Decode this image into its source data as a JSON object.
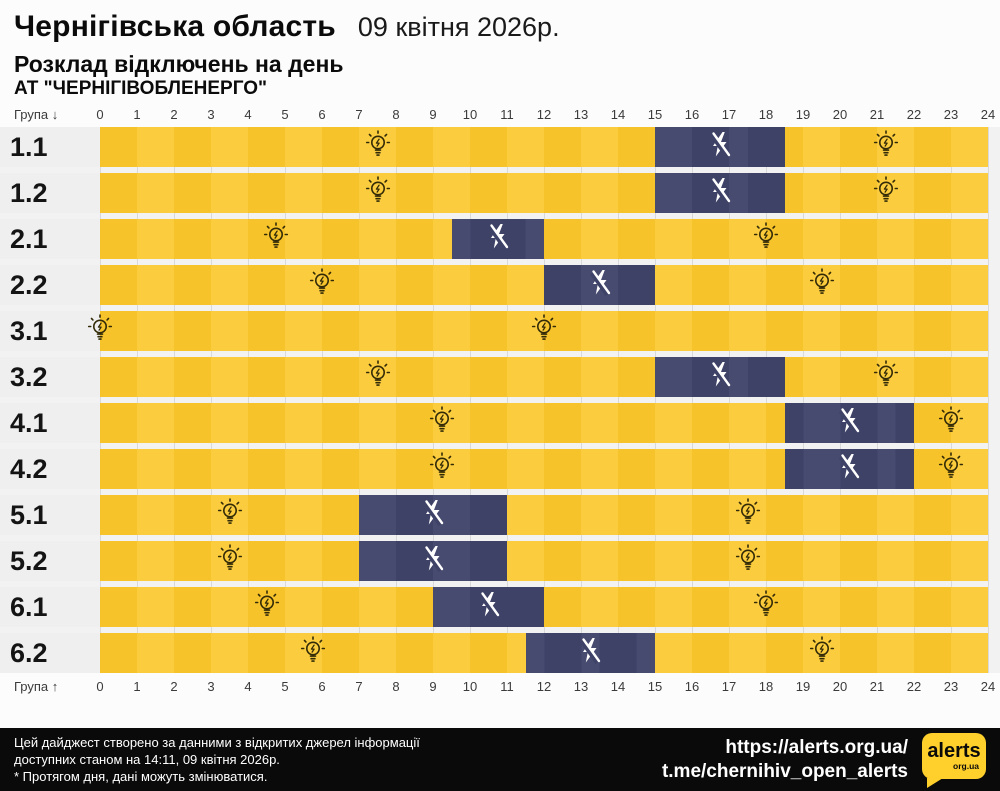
{
  "header": {
    "region": "Чернігівська область",
    "date": "09 квітня 2026р.",
    "subtitle": "Розклад відключень на день",
    "company": "АТ \"ЧЕРНІГІВОБЛЕНЕРГО\""
  },
  "axis": {
    "group_label_top": "Група ↓",
    "group_label_bottom": "Група ↑",
    "ticks": [
      "0",
      "1",
      "2",
      "3",
      "4",
      "5",
      "6",
      "7",
      "8",
      "9",
      "10",
      "11",
      "12",
      "13",
      "14",
      "15",
      "16",
      "17",
      "18",
      "19",
      "20",
      "21",
      "22",
      "23",
      "24"
    ]
  },
  "chart_data": {
    "type": "timeline",
    "title": "Розклад відключень на день",
    "x_unit": "hours",
    "x_range": [
      0,
      24
    ],
    "legend": {
      "power_on_marker": "lightbulb-icon (centered in each power-on interval)",
      "power_off_marker": "crossed-bolt-icon (centered in each outage interval)"
    },
    "rows": [
      {
        "group": "1.1",
        "outages": [
          {
            "start": 15,
            "end": 18.5
          }
        ],
        "bulbs": [
          7.5,
          21.25
        ]
      },
      {
        "group": "1.2",
        "outages": [
          {
            "start": 15,
            "end": 18.5
          }
        ],
        "bulbs": [
          7.5,
          21.25
        ]
      },
      {
        "group": "2.1",
        "outages": [
          {
            "start": 9.5,
            "end": 12
          }
        ],
        "bulbs": [
          4.75,
          18
        ]
      },
      {
        "group": "2.2",
        "outages": [
          {
            "start": 12,
            "end": 15
          }
        ],
        "bulbs": [
          6,
          19.5
        ]
      },
      {
        "group": "3.1",
        "outages": [],
        "bulbs": [
          0,
          12
        ]
      },
      {
        "group": "3.2",
        "outages": [
          {
            "start": 15,
            "end": 18.5
          }
        ],
        "bulbs": [
          7.5,
          21.25
        ]
      },
      {
        "group": "4.1",
        "outages": [
          {
            "start": 18.5,
            "end": 22
          }
        ],
        "bulbs": [
          9.25,
          23
        ]
      },
      {
        "group": "4.2",
        "outages": [
          {
            "start": 18.5,
            "end": 22
          }
        ],
        "bulbs": [
          9.25,
          23
        ]
      },
      {
        "group": "5.1",
        "outages": [
          {
            "start": 7,
            "end": 11
          }
        ],
        "bulbs": [
          3.5,
          17.5
        ]
      },
      {
        "group": "5.2",
        "outages": [
          {
            "start": 7,
            "end": 11
          }
        ],
        "bulbs": [
          3.5,
          17.5
        ]
      },
      {
        "group": "6.1",
        "outages": [
          {
            "start": 9,
            "end": 12
          }
        ],
        "bulbs": [
          4.5,
          18
        ]
      },
      {
        "group": "6.2",
        "outages": [
          {
            "start": 11.5,
            "end": 15
          }
        ],
        "bulbs": [
          5.75,
          19.5
        ]
      }
    ]
  },
  "footer": {
    "line1": "Цей дайджест створено за данними з відкритих джерел інформації",
    "line2": "доступних станом на 14:11, 09 квітня 2026р.",
    "line3": "* Протягом дня, дані можуть змінюватися.",
    "url": "https://alerts.org.ua/",
    "telegram": "t.me/chernihiv_open_alerts",
    "logo_text": "alerts",
    "logo_sub": "org.ua"
  },
  "colors": {
    "power_on_yellow": "#f6c32b",
    "power_on_yellow_alt": "#fbcc3e",
    "outage_navy": "#3e4267",
    "outage_navy_alt": "#474b70",
    "label_cell_bg": "#efefef",
    "footer_bg": "#0a0a0a",
    "logo_yellow": "#ffd02b"
  }
}
